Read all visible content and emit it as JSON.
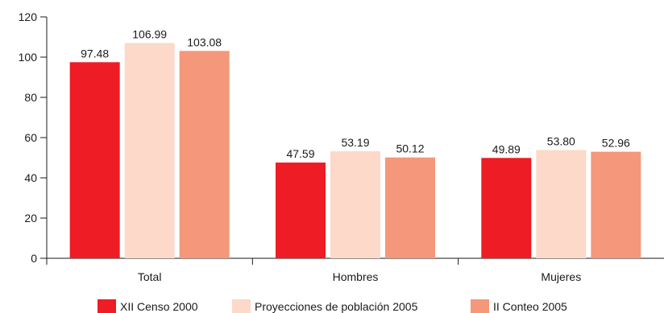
{
  "chart_data": {
    "type": "bar",
    "categories": [
      "Total",
      "Hombres",
      "Mujeres"
    ],
    "series": [
      {
        "name": "XII Censo 2000",
        "color": "#ee1c25",
        "values": [
          97.48,
          47.59,
          49.89
        ]
      },
      {
        "name": "Proyecciones de población 2005",
        "color": "#fcd9c9",
        "values": [
          106.99,
          53.19,
          53.8
        ]
      },
      {
        "name": "II Conteo 2005",
        "color": "#f4977a",
        "values": [
          103.08,
          50.12,
          52.96
        ]
      }
    ],
    "data_labels": [
      [
        "97.48",
        "47.59",
        "49.89"
      ],
      [
        "106.99",
        "53.19",
        "53.80"
      ],
      [
        "103.08",
        "50.12",
        "52.96"
      ]
    ],
    "yticks": [
      0,
      20,
      40,
      60,
      80,
      100,
      120
    ],
    "ylim": [
      0,
      120
    ],
    "title": "",
    "xlabel": "",
    "ylabel": "",
    "grid": false,
    "legend_position": "bottom"
  }
}
